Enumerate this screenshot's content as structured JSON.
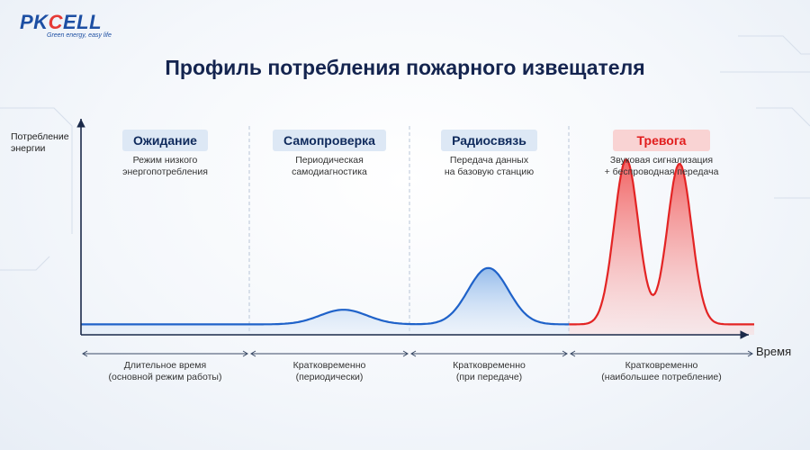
{
  "brand": {
    "logo_prefix": "PK",
    "logo_accent": "C",
    "logo_suffix": "ELL",
    "tagline": "Green energy, easy life"
  },
  "title": "Профиль потребления пожарного извещателя",
  "chart_data": {
    "type": "area",
    "title": "Профиль потребления пожарного извещателя",
    "ylabel": "Потребление энергии",
    "xlabel": "Время",
    "ylim": [
      0,
      10
    ],
    "grid": false,
    "baseline": 0.5,
    "peaks": [
      {
        "stage": "Самопроверка",
        "x": 0.39,
        "height": 0.7,
        "width": 0.035
      },
      {
        "stage": "Радиосвязь",
        "x": 0.605,
        "height": 2.7,
        "width": 0.03
      },
      {
        "stage": "Тревога",
        "x": 0.81,
        "height": 7.9,
        "width": 0.018
      },
      {
        "stage": "Тревога",
        "x": 0.889,
        "height": 7.7,
        "width": 0.018
      }
    ],
    "stages": [
      {
        "label": "Ожидание",
        "description": [
          "Режим низкого",
          "энергопотребления"
        ],
        "duration": [
          "Длительное время",
          "(основной режим работы)"
        ],
        "alarm": false
      },
      {
        "label": "Самопроверка",
        "description": [
          "Периодическая",
          "самодиагностика"
        ],
        "duration": [
          "Кратковременно",
          "(периодически)"
        ],
        "alarm": false
      },
      {
        "label": "Радиосвязь",
        "description": [
          "Передача данных",
          "на базовую станцию"
        ],
        "duration": [
          "Кратковременно",
          "(при передаче)"
        ],
        "alarm": false
      },
      {
        "label": "Тревога",
        "description": [
          "Звуковая сигнализация",
          "+ беспроводная передача"
        ],
        "duration": [
          "Кратковременно",
          "(наибольшее потребление)"
        ],
        "alarm": true
      }
    ]
  },
  "colors": {
    "line": "#1f62c9",
    "fill_blue": "#8fb8ea",
    "fill_red": "#f05a5a",
    "line_red": "#e32424",
    "axis": "#1b2a4a"
  }
}
